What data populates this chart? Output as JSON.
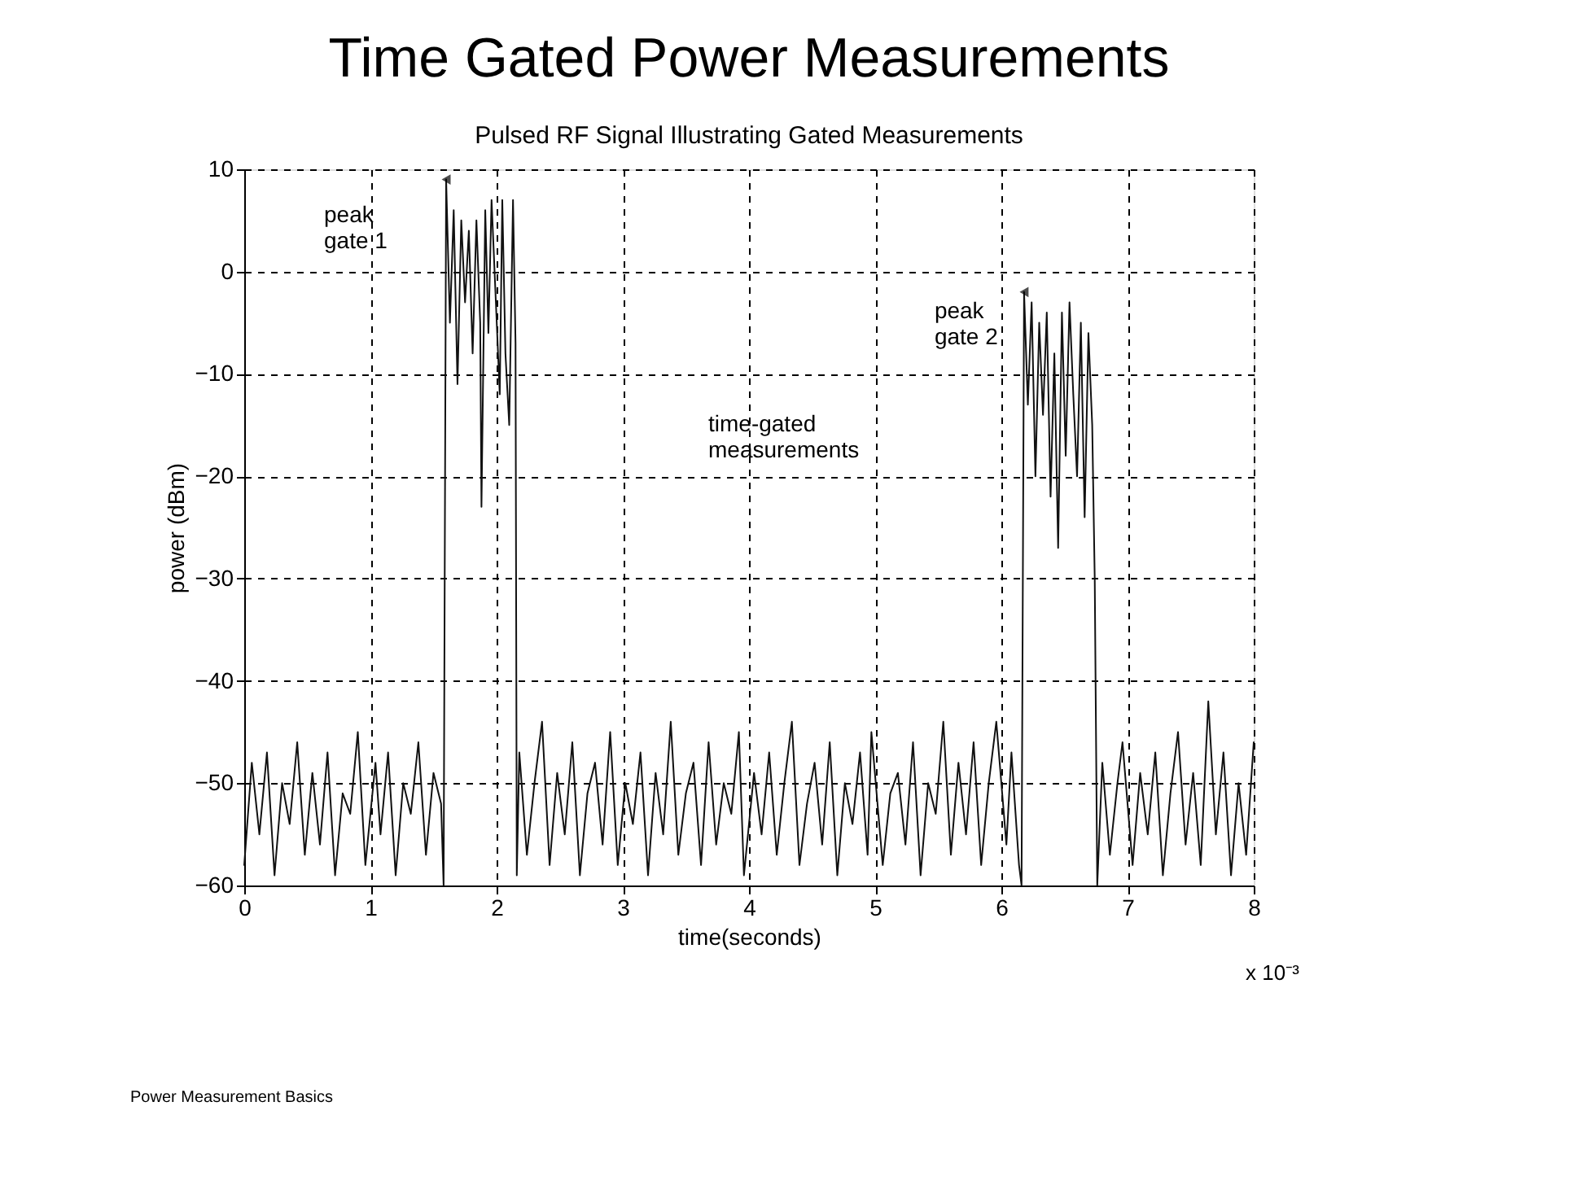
{
  "chart_data": {
    "type": "line",
    "title": "Time Gated Power Measurements",
    "subtitle": "Pulsed RF Signal Illustrating Gated Measurements",
    "xlabel": "time(seconds)",
    "ylabel": "power (dBm)",
    "x": [
      0,
      0.06,
      0.12,
      0.18,
      0.24,
      0.3,
      0.36,
      0.42,
      0.48,
      0.54,
      0.6,
      0.66,
      0.72,
      0.78,
      0.84,
      0.9,
      0.96,
      1.04,
      1.08,
      1.14,
      1.2,
      1.26,
      1.32,
      1.38,
      1.44,
      1.5,
      1.56,
      1.58,
      1.6,
      1.63,
      1.66,
      1.69,
      1.72,
      1.75,
      1.78,
      1.81,
      1.84,
      1.87,
      1.88,
      1.91,
      1.935,
      1.96,
      2.025,
      2.045,
      2.07,
      2.1,
      2.13,
      2.15,
      2.16,
      2.18,
      2.24,
      2.3,
      2.36,
      2.42,
      2.48,
      2.54,
      2.6,
      2.66,
      2.72,
      2.78,
      2.84,
      2.9,
      2.96,
      3.02,
      3.08,
      3.14,
      3.2,
      3.26,
      3.32,
      3.38,
      3.44,
      3.5,
      3.56,
      3.62,
      3.68,
      3.74,
      3.8,
      3.86,
      3.92,
      3.96,
      4.04,
      4.1,
      4.16,
      4.22,
      4.28,
      4.34,
      4.4,
      4.46,
      4.52,
      4.58,
      4.64,
      4.7,
      4.76,
      4.82,
      4.88,
      4.94,
      4.97,
      5.06,
      5.12,
      5.18,
      5.24,
      5.3,
      5.36,
      5.42,
      5.48,
      5.54,
      5.6,
      5.66,
      5.72,
      5.78,
      5.84,
      5.9,
      5.96,
      6.04,
      6.08,
      6.14,
      6.16,
      6.18,
      6.21,
      6.24,
      6.27,
      6.3,
      6.33,
      6.36,
      6.39,
      6.42,
      6.45,
      6.48,
      6.51,
      6.54,
      6.57,
      6.6,
      6.63,
      6.66,
      6.69,
      6.72,
      6.74,
      6.76,
      6.8,
      6.86,
      6.92,
      6.96,
      7.04,
      7.1,
      7.16,
      7.22,
      7.28,
      7.34,
      7.4,
      7.46,
      7.52,
      7.58,
      7.64,
      7.7,
      7.76,
      7.82,
      7.88,
      7.94,
      8.0
    ],
    "series": [
      {
        "color": "#111111",
        "values": [
          -58,
          -48,
          -55,
          -47,
          -59,
          -50,
          -54,
          -46,
          -57,
          -49,
          -56,
          -47,
          -59,
          -51,
          -53,
          -45,
          -58,
          -48,
          -55,
          -47,
          -59,
          -50,
          -53,
          -46,
          -57,
          -49,
          -52,
          -60,
          9,
          -5,
          6,
          -11,
          5,
          -3,
          4,
          -8,
          5,
          -5,
          -23,
          6,
          -6,
          7,
          -12,
          7,
          -8,
          -15,
          7,
          -7,
          -59,
          -47,
          -57,
          -50,
          -44,
          -58,
          -49,
          -55,
          -46,
          -59,
          -51,
          -48,
          -56,
          -45,
          -58,
          -50,
          -54,
          -47,
          -59,
          -49,
          -55,
          -44,
          -57,
          -51,
          -48,
          -58,
          -46,
          -56,
          -50,
          -53,
          -45,
          -59,
          -49,
          -55,
          -47,
          -57,
          -50,
          -44,
          -58,
          -52,
          -48,
          -56,
          -46,
          -59,
          -50,
          -54,
          -47,
          -57,
          -45,
          -58,
          -51,
          -49,
          -56,
          -46,
          -59,
          -50,
          -53,
          -44,
          -57,
          -48,
          -55,
          -46,
          -58,
          -50,
          -44,
          -56,
          -47,
          -58,
          -60,
          -2,
          -13,
          -3,
          -20,
          -5,
          -14,
          -4,
          -22,
          -8,
          -27,
          -4,
          -18,
          -3,
          -12,
          -20,
          -5,
          -24,
          -6,
          -15,
          -30,
          -60,
          -48,
          -57,
          -50,
          -46,
          -58,
          -49,
          -55,
          -47,
          -59,
          -51,
          -45,
          -56,
          -49,
          -58,
          -42,
          -55,
          -47,
          -59,
          -50,
          -57,
          -46
        ]
      }
    ],
    "xlim": [
      0,
      8
    ],
    "xticks": [
      0,
      1,
      2,
      3,
      4,
      5,
      6,
      7,
      8
    ],
    "ylim": [
      -60,
      10
    ],
    "yticks": [
      -60,
      -50,
      -40,
      -30,
      -20,
      -10,
      0,
      10
    ],
    "grid": true,
    "line_style": "solid",
    "marker": "none",
    "annotations": [
      {
        "text": "peak\ngate 1",
        "x": 1.6,
        "y": 9
      },
      "time-gated\nmeasurements",
      {
        "text": "peak\ngate 2",
        "x": 6.18,
        "y": -2
      },
      "x 10⁻³",
      "Power Measurement Basics"
    ]
  }
}
